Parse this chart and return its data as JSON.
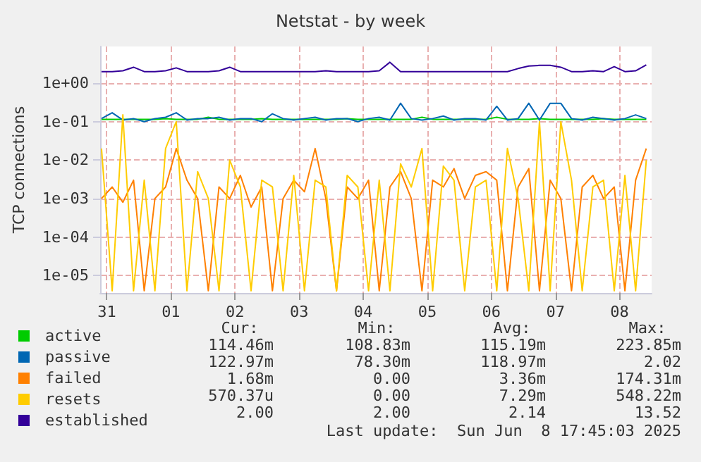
{
  "chart_data": {
    "type": "line",
    "title": "Netstat - by week",
    "ylabel": "TCP connections",
    "x": [
      "2025-05-30T22:00",
      "2025-05-31T02:00",
      "2025-05-31T06:00",
      "2025-05-31T10:00",
      "2025-05-31T14:00",
      "2025-05-31T18:00",
      "2025-05-31T22:00",
      "2025-06-01T02:00",
      "2025-06-01T06:00",
      "2025-06-01T10:00",
      "2025-06-01T14:00",
      "2025-06-01T18:00",
      "2025-06-01T22:00",
      "2025-06-02T02:00",
      "2025-06-02T06:00",
      "2025-06-02T10:00",
      "2025-06-02T14:00",
      "2025-06-02T18:00",
      "2025-06-02T22:00",
      "2025-06-03T02:00",
      "2025-06-03T06:00",
      "2025-06-03T10:00",
      "2025-06-03T14:00",
      "2025-06-03T18:00",
      "2025-06-03T22:00",
      "2025-06-04T02:00",
      "2025-06-04T06:00",
      "2025-06-04T10:00",
      "2025-06-04T14:00",
      "2025-06-04T18:00",
      "2025-06-04T22:00",
      "2025-06-05T02:00",
      "2025-06-05T06:00",
      "2025-06-05T10:00",
      "2025-06-05T14:00",
      "2025-06-05T18:00",
      "2025-06-05T22:00",
      "2025-06-06T02:00",
      "2025-06-06T06:00",
      "2025-06-06T10:00",
      "2025-06-06T14:00",
      "2025-06-06T18:00",
      "2025-06-06T22:00",
      "2025-06-07T02:00",
      "2025-06-07T06:00",
      "2025-06-07T10:00",
      "2025-06-07T14:00",
      "2025-06-07T18:00",
      "2025-06-07T22:00",
      "2025-06-08T02:00",
      "2025-06-08T06:00",
      "2025-06-08T10:00"
    ],
    "series": [
      {
        "name": "active",
        "color": "#00cc00",
        "values": [
          0.115,
          0.115,
          0.115,
          0.115,
          0.115,
          0.115,
          0.12,
          0.115,
          0.115,
          0.115,
          0.13,
          0.115,
          0.115,
          0.115,
          0.115,
          0.12,
          0.115,
          0.115,
          0.115,
          0.115,
          0.115,
          0.115,
          0.115,
          0.12,
          0.115,
          0.115,
          0.115,
          0.115,
          0.115,
          0.115,
          0.13,
          0.115,
          0.115,
          0.115,
          0.115,
          0.115,
          0.115,
          0.13,
          0.115,
          0.115,
          0.115,
          0.12,
          0.115,
          0.115,
          0.115,
          0.115,
          0.115,
          0.12,
          0.115,
          0.115,
          0.115,
          0.115
        ]
      },
      {
        "name": "passive",
        "color": "#0066b3",
        "values": [
          0.12,
          0.17,
          0.11,
          0.12,
          0.1,
          0.12,
          0.13,
          0.17,
          0.11,
          0.12,
          0.12,
          0.13,
          0.11,
          0.12,
          0.12,
          0.1,
          0.16,
          0.12,
          0.11,
          0.12,
          0.13,
          0.11,
          0.12,
          0.12,
          0.1,
          0.12,
          0.13,
          0.11,
          0.3,
          0.12,
          0.11,
          0.12,
          0.14,
          0.11,
          0.12,
          0.12,
          0.11,
          0.25,
          0.11,
          0.12,
          0.3,
          0.11,
          0.3,
          0.3,
          0.12,
          0.11,
          0.13,
          0.12,
          0.11,
          0.12,
          0.15,
          0.12
        ]
      },
      {
        "name": "failed",
        "color": "#ff8000",
        "values": [
          0.001,
          0.002,
          0.0008,
          0.003,
          4e-06,
          0.001,
          0.002,
          0.02,
          0.003,
          0.001,
          4e-06,
          0.002,
          0.001,
          0.004,
          0.0006,
          0.002,
          4e-06,
          0.001,
          0.003,
          0.0015,
          0.02,
          0.001,
          4e-06,
          0.002,
          0.001,
          0.003,
          4e-06,
          0.002,
          0.005,
          0.001,
          4e-06,
          0.003,
          0.002,
          0.006,
          0.001,
          0.004,
          0.005,
          0.003,
          4e-06,
          0.002,
          0.006,
          4e-06,
          0.003,
          0.001,
          4e-06,
          0.002,
          0.004,
          0.001,
          0.002,
          4e-06,
          0.003,
          0.02
        ]
      },
      {
        "name": "resets",
        "color": "#ffcc00",
        "values": [
          0.02,
          4e-06,
          0.15,
          4e-06,
          0.003,
          4e-06,
          0.02,
          0.1,
          4e-06,
          0.005,
          0.001,
          4e-06,
          0.01,
          0.002,
          4e-06,
          0.003,
          0.002,
          4e-06,
          0.004,
          4e-06,
          0.003,
          0.002,
          4e-06,
          0.004,
          0.002,
          4e-06,
          0.003,
          4e-06,
          0.008,
          0.002,
          0.02,
          4e-06,
          0.007,
          0.003,
          4e-06,
          0.002,
          0.003,
          4e-06,
          0.02,
          0.001,
          4e-06,
          0.1,
          4e-06,
          0.1,
          0.003,
          4e-06,
          0.002,
          0.003,
          4e-06,
          0.004,
          4e-06,
          0.01
        ]
      },
      {
        "name": "established",
        "color": "#330099",
        "values": [
          2,
          2,
          2.1,
          2.6,
          2,
          2,
          2.1,
          2.5,
          2,
          2,
          2,
          2.1,
          2.6,
          2,
          2,
          2,
          2,
          2,
          2,
          2,
          2,
          2.1,
          2,
          2,
          2,
          2,
          2.1,
          3.5,
          2,
          2,
          2,
          2,
          2,
          2,
          2,
          2,
          2,
          2,
          2,
          2.4,
          2.8,
          2.9,
          2.9,
          2.6,
          2,
          2,
          2.1,
          2,
          2.7,
          2,
          2.1,
          3
        ]
      }
    ],
    "xlim": [
      "2025-05-30T21:30",
      "2025-06-08T12:00"
    ],
    "xticks": [
      {
        "value": "2025-05-31",
        "label": "31"
      },
      {
        "value": "2025-06-01",
        "label": "01"
      },
      {
        "value": "2025-06-02",
        "label": "02"
      },
      {
        "value": "2025-06-03",
        "label": "03"
      },
      {
        "value": "2025-06-04",
        "label": "04"
      },
      {
        "value": "2025-06-05",
        "label": "05"
      },
      {
        "value": "2025-06-06",
        "label": "06"
      },
      {
        "value": "2025-06-07",
        "label": "07"
      },
      {
        "value": "2025-06-08",
        "label": "08"
      }
    ],
    "ylim": [
      3.5e-06,
      9
    ],
    "yticks": [
      {
        "value": 1e-05,
        "label": "1e-05"
      },
      {
        "value": 0.0001,
        "label": "1e-04"
      },
      {
        "value": 0.001,
        "label": "1e-03"
      },
      {
        "value": 0.01,
        "label": "1e-02"
      },
      {
        "value": 0.1,
        "label": "1e-01"
      },
      {
        "value": 1,
        "label": "1e+00"
      }
    ],
    "log": "y",
    "grid": true,
    "legend": "bottom left",
    "marker": "none",
    "line_style": "solid",
    "annotations": [
      "Cur:",
      "Min:",
      "Avg:",
      "Max:",
      "114.46m",
      "108.83m",
      "115.19m",
      "223.85m",
      "122.97m",
      "78.30m",
      "118.97m",
      "2.02",
      "1.68m",
      "0.00",
      "3.36m",
      "174.31m",
      "570.37u",
      "0.00",
      "7.29m",
      "548.22m",
      "2.00",
      "2.00",
      "2.14",
      "13.52",
      "Last update:  Sun Jun  8 17:45:03 2025"
    ]
  }
}
